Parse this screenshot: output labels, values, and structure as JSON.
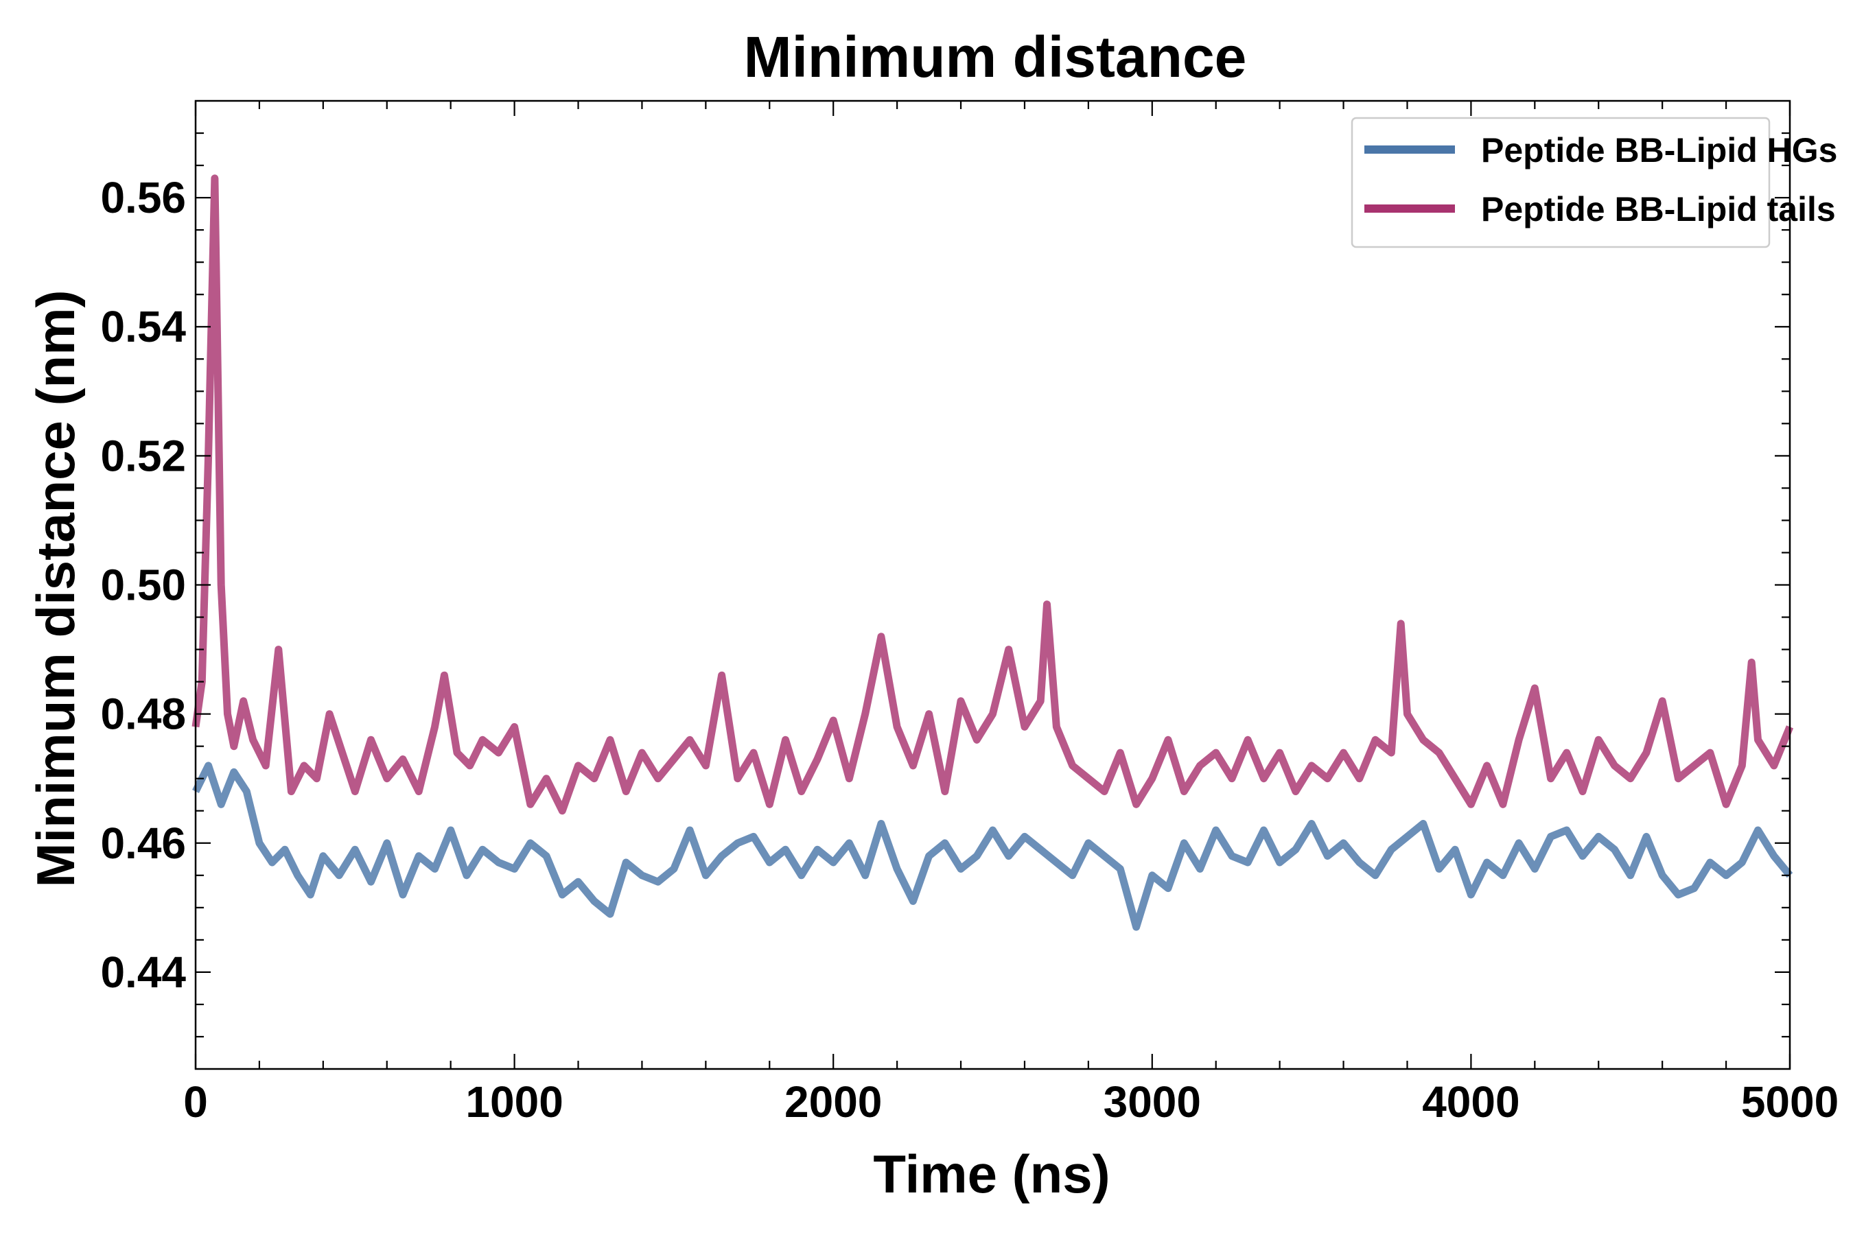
{
  "chart_data": {
    "type": "line",
    "title": "Minimum distance",
    "xlabel": "Time (ns)",
    "ylabel": "Minimum distance (nm)",
    "xlim": [
      0,
      5000
    ],
    "ylim": [
      0.425,
      0.575
    ],
    "x_ticks": [
      0,
      1000,
      2000,
      3000,
      4000,
      5000
    ],
    "x_tick_labels": [
      "0",
      "1000",
      "2000",
      "3000",
      "4000",
      "5000"
    ],
    "y_ticks": [
      0.44,
      0.46,
      0.48,
      0.5,
      0.52,
      0.54,
      0.56
    ],
    "y_tick_labels": [
      "0.44",
      "0.46",
      "0.48",
      "0.50",
      "0.52",
      "0.54",
      "0.56"
    ],
    "grid": false,
    "legend_position": "top-right",
    "series": [
      {
        "name": "Peptide BB-Lipid HGs",
        "color": "#4a76a8",
        "x": [
          0,
          40,
          80,
          120,
          160,
          200,
          240,
          280,
          320,
          360,
          400,
          450,
          500,
          550,
          600,
          650,
          700,
          750,
          800,
          850,
          900,
          950,
          1000,
          1050,
          1100,
          1150,
          1200,
          1250,
          1300,
          1350,
          1400,
          1450,
          1500,
          1550,
          1600,
          1650,
          1700,
          1750,
          1800,
          1850,
          1900,
          1950,
          2000,
          2050,
          2100,
          2150,
          2200,
          2250,
          2300,
          2350,
          2400,
          2450,
          2500,
          2550,
          2600,
          2650,
          2700,
          2750,
          2800,
          2850,
          2900,
          2950,
          3000,
          3050,
          3100,
          3150,
          3200,
          3250,
          3300,
          3350,
          3400,
          3450,
          3500,
          3550,
          3600,
          3650,
          3700,
          3750,
          3800,
          3850,
          3900,
          3950,
          4000,
          4050,
          4100,
          4150,
          4200,
          4250,
          4300,
          4350,
          4400,
          4450,
          4500,
          4550,
          4600,
          4650,
          4700,
          4750,
          4800,
          4850,
          4900,
          4950,
          5000
        ],
        "values": [
          0.468,
          0.472,
          0.466,
          0.471,
          0.468,
          0.46,
          0.457,
          0.459,
          0.455,
          0.452,
          0.458,
          0.455,
          0.459,
          0.454,
          0.46,
          0.452,
          0.458,
          0.456,
          0.462,
          0.455,
          0.459,
          0.457,
          0.456,
          0.46,
          0.458,
          0.452,
          0.454,
          0.451,
          0.449,
          0.457,
          0.455,
          0.454,
          0.456,
          0.462,
          0.455,
          0.458,
          0.46,
          0.461,
          0.457,
          0.459,
          0.455,
          0.459,
          0.457,
          0.46,
          0.455,
          0.463,
          0.456,
          0.451,
          0.458,
          0.46,
          0.456,
          0.458,
          0.462,
          0.458,
          0.461,
          0.459,
          0.457,
          0.455,
          0.46,
          0.458,
          0.456,
          0.447,
          0.455,
          0.453,
          0.46,
          0.456,
          0.462,
          0.458,
          0.457,
          0.462,
          0.457,
          0.459,
          0.463,
          0.458,
          0.46,
          0.457,
          0.455,
          0.459,
          0.461,
          0.463,
          0.456,
          0.459,
          0.452,
          0.457,
          0.455,
          0.46,
          0.456,
          0.461,
          0.462,
          0.458,
          0.461,
          0.459,
          0.455,
          0.461,
          0.455,
          0.452,
          0.453,
          0.457,
          0.455,
          0.457,
          0.462,
          0.458,
          0.455
        ]
      },
      {
        "name": "Peptide BB-Lipid tails",
        "color": "#a8336f",
        "x": [
          0,
          20,
          40,
          60,
          80,
          100,
          120,
          150,
          180,
          220,
          260,
          300,
          340,
          380,
          420,
          460,
          500,
          550,
          600,
          650,
          700,
          750,
          780,
          820,
          860,
          900,
          950,
          1000,
          1050,
          1100,
          1150,
          1200,
          1250,
          1300,
          1350,
          1400,
          1450,
          1500,
          1550,
          1600,
          1650,
          1700,
          1750,
          1800,
          1850,
          1900,
          1950,
          2000,
          2050,
          2100,
          2150,
          2200,
          2250,
          2300,
          2350,
          2400,
          2450,
          2500,
          2550,
          2600,
          2650,
          2670,
          2700,
          2750,
          2800,
          2850,
          2900,
          2950,
          3000,
          3050,
          3100,
          3150,
          3200,
          3250,
          3300,
          3350,
          3400,
          3450,
          3500,
          3550,
          3600,
          3650,
          3700,
          3750,
          3780,
          3800,
          3850,
          3900,
          3950,
          4000,
          4050,
          4100,
          4150,
          4200,
          4250,
          4300,
          4350,
          4400,
          4450,
          4500,
          4550,
          4600,
          4650,
          4700,
          4750,
          4800,
          4850,
          4880,
          4900,
          4950,
          5000
        ],
        "values": [
          0.478,
          0.485,
          0.52,
          0.563,
          0.5,
          0.48,
          0.475,
          0.482,
          0.476,
          0.472,
          0.49,
          0.468,
          0.472,
          0.47,
          0.48,
          0.474,
          0.468,
          0.476,
          0.47,
          0.473,
          0.468,
          0.478,
          0.486,
          0.474,
          0.472,
          0.476,
          0.474,
          0.478,
          0.466,
          0.47,
          0.465,
          0.472,
          0.47,
          0.476,
          0.468,
          0.474,
          0.47,
          0.473,
          0.476,
          0.472,
          0.486,
          0.47,
          0.474,
          0.466,
          0.476,
          0.468,
          0.473,
          0.479,
          0.47,
          0.48,
          0.492,
          0.478,
          0.472,
          0.48,
          0.468,
          0.482,
          0.476,
          0.48,
          0.49,
          0.478,
          0.482,
          0.497,
          0.478,
          0.472,
          0.47,
          0.468,
          0.474,
          0.466,
          0.47,
          0.476,
          0.468,
          0.472,
          0.474,
          0.47,
          0.476,
          0.47,
          0.474,
          0.468,
          0.472,
          0.47,
          0.474,
          0.47,
          0.476,
          0.474,
          0.494,
          0.48,
          0.476,
          0.474,
          0.47,
          0.466,
          0.472,
          0.466,
          0.476,
          0.484,
          0.47,
          0.474,
          0.468,
          0.476,
          0.472,
          0.47,
          0.474,
          0.482,
          0.47,
          0.472,
          0.474,
          0.466,
          0.472,
          0.488,
          0.476,
          0.472,
          0.478
        ]
      }
    ]
  }
}
